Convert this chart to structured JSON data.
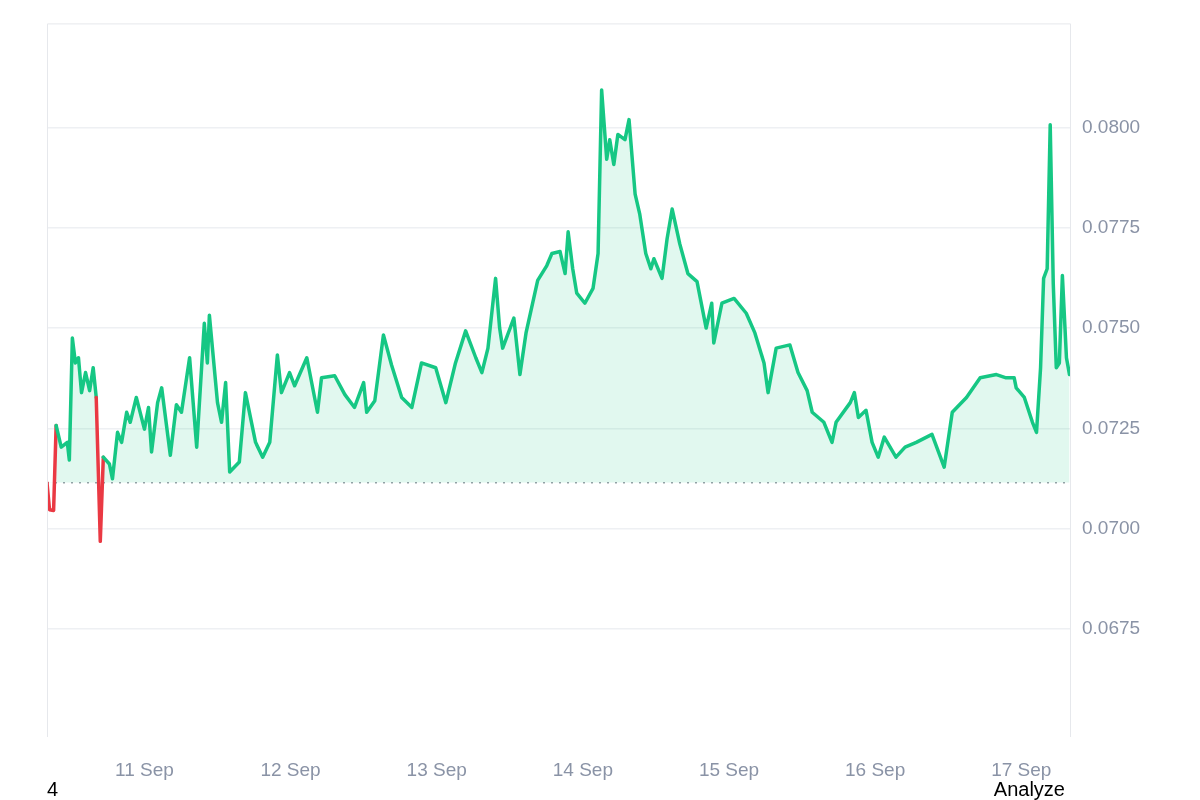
{
  "chart_data": {
    "type": "area",
    "xlim": [
      "--09-10T08:00",
      "--09-17T08:00"
    ],
    "xticks": [
      {
        "value": "--09-11",
        "label": "11 Sep"
      },
      {
        "value": "--09-12",
        "label": "12 Sep"
      },
      {
        "value": "--09-13",
        "label": "13 Sep"
      },
      {
        "value": "--09-14",
        "label": "14 Sep"
      },
      {
        "value": "--09-15",
        "label": "15 Sep"
      },
      {
        "value": "--09-16",
        "label": "16 Sep"
      },
      {
        "value": "--09-17",
        "label": "17 Sep"
      }
    ],
    "ylim": [
      0.0648,
      0.0826
    ],
    "yticks": [
      {
        "value": 0.0675,
        "label": "0.0675"
      },
      {
        "value": 0.07,
        "label": "0.0700"
      },
      {
        "value": 0.0725,
        "label": "0.0725"
      },
      {
        "value": 0.075,
        "label": "0.0750"
      },
      {
        "value": 0.0775,
        "label": "0.0775"
      },
      {
        "value": 0.08,
        "label": "0.0800"
      }
    ],
    "grid": "y",
    "legend": false,
    "marker": "none",
    "ref_lines": [
      {
        "axis": "y",
        "value": 0.07114,
        "color": "#9aa0a8",
        "line_style": "dotted"
      }
    ],
    "annotations": [
      "4",
      "Analyze"
    ],
    "series": [
      {
        "color": "#16c784",
        "x": [
          "--09-10T08:00",
          "--09-10T08:25",
          "--09-10T09:05",
          "--09-10T09:30",
          "--09-10T10:20",
          "--09-10T11:20",
          "--09-10T11:40",
          "--09-10T12:10",
          "--09-10T12:40",
          "--09-10T13:10",
          "--09-10T13:40",
          "--09-10T14:20",
          "--09-10T15:00",
          "--09-10T15:35",
          "--09-10T16:05",
          "--09-10T16:45",
          "--09-10T17:15",
          "--09-10T18:15",
          "--09-10T18:45",
          "--09-10T19:35",
          "--09-10T20:15",
          "--09-10T21:05",
          "--09-10T21:40",
          "--09-10T22:40",
          "--09-11T00:00",
          "--09-11T00:40",
          "--09-11T01:10",
          "--09-11T02:10",
          "--09-11T02:50",
          "--09-11T04:15",
          "--09-11T05:15",
          "--09-11T06:05",
          "--09-11T07:25",
          "--09-11T08:35",
          "--09-11T09:50",
          "--09-11T10:20",
          "--09-11T10:40",
          "--09-11T12:00",
          "--09-11T12:40",
          "--09-11T13:20",
          "--09-11T14:00",
          "--09-11T15:35",
          "--09-11T16:35",
          "--09-11T18:15",
          "--09-11T19:25",
          "--09-11T20:35",
          "--09-11T21:50",
          "--09-11T22:30",
          "--09-11T23:50",
          "--09-12T00:40",
          "--09-12T02:40",
          "--09-12T04:25",
          "--09-12T05:05",
          "--09-12T07:15",
          "--09-12T08:55",
          "--09-12T10:30",
          "--09-12T12:00",
          "--09-12T12:30",
          "--09-12T13:50",
          "--09-12T15:15",
          "--09-12T16:35",
          "--09-12T18:15",
          "--09-12T19:55",
          "--09-12T21:30",
          "--09-12T23:50",
          "--09-13T01:30",
          "--09-13T03:05",
          "--09-13T04:45",
          "--09-13T06:25",
          "--09-13T07:25",
          "--09-13T08:25",
          "--09-13T09:40",
          "--09-13T10:20",
          "--09-13T10:50",
          "--09-13T12:40",
          "--09-13T13:40",
          "--09-13T14:40",
          "--09-13T16:35",
          "--09-13T18:05",
          "--09-13T18:55",
          "--09-13T20:15",
          "--09-13T21:05",
          "--09-13T21:35",
          "--09-13T22:20",
          "--09-13T23:00",
          "--09-14T00:20",
          "--09-14T01:40",
          "--09-14T02:30",
          "--09-14T03:05",
          "--09-14T03:55",
          "--09-14T04:25",
          "--09-14T05:05",
          "--09-14T05:45",
          "--09-14T06:55",
          "--09-14T07:35",
          "--09-14T08:35",
          "--09-14T09:20",
          "--09-14T10:20",
          "--09-14T11:10",
          "--09-14T11:40",
          "--09-14T13:00",
          "--09-14T13:50",
          "--09-14T14:40",
          "--09-14T15:55",
          "--09-14T17:15",
          "--09-14T18:45",
          "--09-14T20:15",
          "--09-14T21:10",
          "--09-14T21:30",
          "--09-14T22:50",
          "--09-15T00:50",
          "--09-15T02:50",
          "--09-15T04:15",
          "--09-15T05:45",
          "--09-15T06:25",
          "--09-15T07:45",
          "--09-15T10:00",
          "--09-15T11:20",
          "--09-15T12:50",
          "--09-15T13:40",
          "--09-15T15:35",
          "--09-15T16:55",
          "--09-15T17:35",
          "--09-15T19:55",
          "--09-15T20:35",
          "--09-15T21:15",
          "--09-15T22:30",
          "--09-15T23:30",
          "--09-16T00:30",
          "--09-16T01:30",
          "--09-16T03:25",
          "--09-16T04:55",
          "--09-16T06:45",
          "--09-16T09:20",
          "--09-16T11:20",
          "--09-16T12:40",
          "--09-16T15:00",
          "--09-16T17:15",
          "--09-16T19:55",
          "--09-16T21:30",
          "--09-16T22:50",
          "--09-16T23:10",
          "--09-17T00:30",
          "--09-17T01:50",
          "--09-17T02:30",
          "--09-17T03:10",
          "--09-17T03:40",
          "--09-17T04:15",
          "--09-17T04:45",
          "--09-17T05:15",
          "--09-17T05:45",
          "--09-17T06:15",
          "--09-17T06:45",
          "--09-17T07:25",
          "--09-17T07:55"
        ],
        "values": [
          0.07114,
          0.07047,
          0.07045,
          0.07257,
          0.07203,
          0.07215,
          0.07171,
          0.07475,
          0.07413,
          0.07426,
          0.07339,
          0.07389,
          0.07344,
          0.07401,
          0.07327,
          0.06968,
          0.07178,
          0.07161,
          0.07124,
          0.0724,
          0.07215,
          0.0729,
          0.07265,
          0.07327,
          0.07248,
          0.07302,
          0.07191,
          0.07314,
          0.07351,
          0.07183,
          0.07309,
          0.0729,
          0.07426,
          0.07203,
          0.07512,
          0.07413,
          0.07532,
          0.07314,
          0.07265,
          0.07364,
          0.07141,
          0.07166,
          0.07339,
          0.07215,
          0.07178,
          0.07215,
          0.07433,
          0.07339,
          0.07389,
          0.07356,
          0.07426,
          0.0729,
          0.07376,
          0.07381,
          0.07334,
          0.07302,
          0.07364,
          0.0729,
          0.07319,
          0.07483,
          0.07408,
          0.07327,
          0.07302,
          0.07413,
          0.07401,
          0.07314,
          0.07413,
          0.07493,
          0.07426,
          0.07389,
          0.0745,
          0.07624,
          0.075,
          0.0745,
          0.07525,
          0.07384,
          0.07488,
          0.07619,
          0.07656,
          0.07686,
          0.07691,
          0.07636,
          0.0774,
          0.07648,
          0.07587,
          0.07562,
          0.07599,
          0.07686,
          0.08094,
          0.07921,
          0.0797,
          0.07908,
          0.07983,
          0.0797,
          0.0802,
          0.07834,
          0.07785,
          0.07686,
          0.07648,
          0.07673,
          0.07624,
          0.07723,
          0.07797,
          0.0771,
          0.07636,
          0.07616,
          0.075,
          0.07562,
          0.07463,
          0.07562,
          0.07574,
          0.07537,
          0.07488,
          0.07413,
          0.07339,
          0.0745,
          0.07458,
          0.07389,
          0.07344,
          0.0729,
          0.07265,
          0.07215,
          0.07265,
          0.07314,
          0.07339,
          0.07277,
          0.07295,
          0.07215,
          0.07178,
          0.07228,
          0.07178,
          0.07203,
          0.07215,
          0.07235,
          0.07153,
          0.0729,
          0.07327,
          0.07376,
          0.07384,
          0.07376,
          0.07376,
          0.07351,
          0.07327,
          0.07265,
          0.0724,
          0.07401,
          0.07624,
          0.07648,
          0.08007,
          0.07611,
          0.07401,
          0.07413,
          0.07631,
          0.07426,
          0.07384
        ],
        "colors": [
          "#ea3943",
          "#ea3943",
          "#ea3943",
          "#16c784",
          "#16c784",
          "#16c784",
          "#16c784",
          "#16c784",
          "#16c784",
          "#16c784",
          "#16c784",
          "#16c784",
          "#16c784",
          "#16c784",
          "#16c784",
          "#ea3943",
          "#16c784",
          "#16c784",
          "#16c784",
          "#16c784",
          "#16c784",
          "#16c784",
          "#16c784",
          "#16c784",
          "#16c784",
          "#16c784",
          "#16c784",
          "#16c784",
          "#16c784",
          "#16c784",
          "#16c784",
          "#16c784",
          "#16c784",
          "#16c784",
          "#16c784",
          "#16c784",
          "#16c784",
          "#16c784",
          "#16c784",
          "#16c784",
          "#16c784",
          "#16c784",
          "#16c784",
          "#16c784",
          "#16c784",
          "#16c784",
          "#16c784",
          "#16c784",
          "#16c784",
          "#16c784",
          "#16c784",
          "#16c784",
          "#16c784",
          "#16c784",
          "#16c784",
          "#16c784",
          "#16c784",
          "#16c784",
          "#16c784",
          "#16c784",
          "#16c784",
          "#16c784",
          "#16c784",
          "#16c784",
          "#16c784",
          "#16c784",
          "#16c784",
          "#16c784",
          "#16c784",
          "#16c784",
          "#16c784",
          "#16c784",
          "#16c784",
          "#16c784",
          "#16c784",
          "#16c784",
          "#16c784",
          "#16c784",
          "#16c784",
          "#16c784",
          "#16c784",
          "#16c784",
          "#16c784",
          "#16c784",
          "#16c784",
          "#16c784",
          "#16c784",
          "#16c784",
          "#16c784",
          "#16c784",
          "#16c784",
          "#16c784",
          "#16c784",
          "#16c784",
          "#16c784",
          "#16c784",
          "#16c784",
          "#16c784",
          "#16c784",
          "#16c784",
          "#16c784",
          "#16c784",
          "#16c784",
          "#16c784",
          "#16c784",
          "#16c784",
          "#16c784",
          "#16c784",
          "#16c784",
          "#16c784",
          "#16c784",
          "#16c784",
          "#16c784",
          "#16c784",
          "#16c784",
          "#16c784",
          "#16c784",
          "#16c784",
          "#16c784",
          "#16c784",
          "#16c784",
          "#16c784",
          "#16c784",
          "#16c784",
          "#16c784",
          "#16c784",
          "#16c784",
          "#16c784",
          "#16c784",
          "#16c784",
          "#16c784",
          "#16c784",
          "#16c784",
          "#16c784",
          "#16c784",
          "#16c784",
          "#16c784",
          "#16c784",
          "#16c784",
          "#16c784",
          "#16c784",
          "#16c784",
          "#16c784",
          "#16c784",
          "#16c784",
          "#16c784",
          "#16c784",
          "#16c784",
          "#16c784",
          "#16c784",
          "#16c784",
          "#16c784",
          "#16c784",
          "#16c784",
          "#16c784"
        ]
      }
    ]
  }
}
